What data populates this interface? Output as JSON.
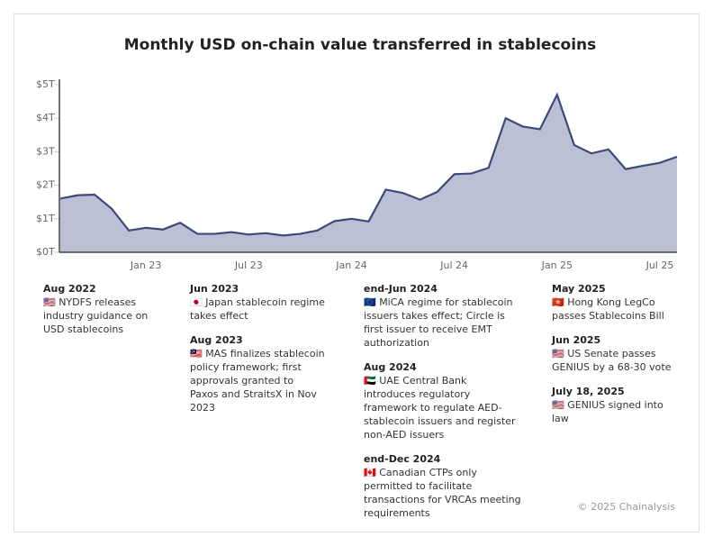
{
  "chart_data": {
    "type": "area",
    "title": "Monthly USD on-chain value transferred in stablecoins",
    "categories": [
      null,
      null,
      null,
      null,
      null,
      "Jan 23",
      null,
      null,
      null,
      null,
      null,
      "Jul 23",
      null,
      null,
      null,
      null,
      null,
      "Jan 24",
      null,
      null,
      null,
      null,
      null,
      "Jul 24",
      null,
      null,
      null,
      null,
      null,
      "Jan 25",
      null,
      null,
      null,
      null,
      null,
      "Jul 25",
      null
    ],
    "values": [
      1.6,
      1.7,
      1.72,
      1.3,
      0.65,
      0.73,
      0.68,
      0.88,
      0.55,
      0.55,
      0.6,
      0.53,
      0.57,
      0.5,
      0.55,
      0.65,
      0.93,
      1.0,
      0.92,
      1.87,
      1.77,
      1.57,
      1.8,
      2.33,
      2.35,
      2.52,
      4.0,
      3.75,
      3.67,
      4.7,
      3.2,
      2.95,
      3.07,
      2.48,
      2.58,
      2.67,
      2.85
    ],
    "color": "#3b4a7e",
    "fill": "#bcc0d4",
    "ylim": [
      0,
      5
    ],
    "yticks": [
      {
        "value": 0,
        "label": "$0T"
      },
      {
        "value": 1,
        "label": "$1T"
      },
      {
        "value": 2,
        "label": "$2T"
      },
      {
        "value": 3,
        "label": "$3T"
      },
      {
        "value": 4,
        "label": "$4T"
      },
      {
        "value": 5,
        "label": "$5T"
      }
    ],
    "grid": false,
    "annotations": [
      [
        {
          "date": "Aug 2022",
          "text": "🇺🇸 NYDFS releases industry guidance on USD stablecoins"
        }
      ],
      [
        {
          "date": "Jun 2023",
          "text": "🇯🇵 Japan stablecoin regime takes effect"
        },
        {
          "date": "Aug 2023",
          "text": "🇲🇾 MAS finalizes stablecoin policy framework; first approvals granted to Paxos and StraitsX in Nov 2023"
        }
      ],
      [
        {
          "date": "end-Jun 2024",
          "text": "🇪🇺 MiCA regime for stablecoin issuers takes effect; Circle is first issuer to receive EMT authorization"
        },
        {
          "date": "Aug 2024",
          "text": "🇦🇪 UAE Central Bank introduces regulatory framework to regulate AED-stablecoin issuers and register non-AED issuers"
        },
        {
          "date": "end-Dec 2024",
          "text": "🇨🇦 Canadian CTPs only permitted to facilitate transactions for VRCAs meeting requirements"
        }
      ],
      [
        {
          "date": "May 2025",
          "text": "🇭🇰 Hong Kong LegCo passes Stablecoins Bill"
        },
        {
          "date": "Jun 2025",
          "text": "🇺🇸 US Senate passes GENIUS by a 68-30 vote"
        },
        {
          "date": "July 18, 2025",
          "text": "🇺🇸 GENIUS signed into law"
        }
      ]
    ],
    "footer": "© 2025 Chainalysis"
  }
}
